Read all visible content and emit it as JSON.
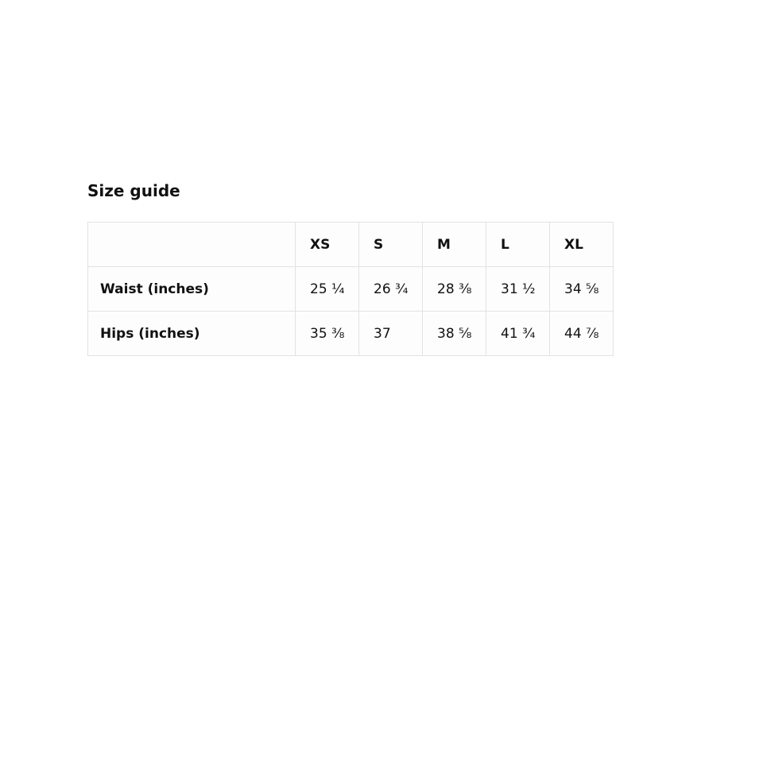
{
  "page": {
    "background": "#ffffff",
    "text_color": "#111111",
    "table_border_color": "#e2e2e2"
  },
  "section": {
    "title": "Size guide"
  },
  "size_table": {
    "columns": [
      "",
      "XS",
      "S",
      "M",
      "L",
      "XL"
    ],
    "rows": [
      {
        "label": "Waist (inches)",
        "values": [
          "25 ¼",
          "26 ¾",
          "28 ⅜",
          "31 ½",
          "34 ⅝"
        ]
      },
      {
        "label": "Hips (inches)",
        "values": [
          "35 ⅜",
          "37",
          "38 ⅝",
          "41 ¾",
          "44 ⅞"
        ]
      }
    ]
  }
}
